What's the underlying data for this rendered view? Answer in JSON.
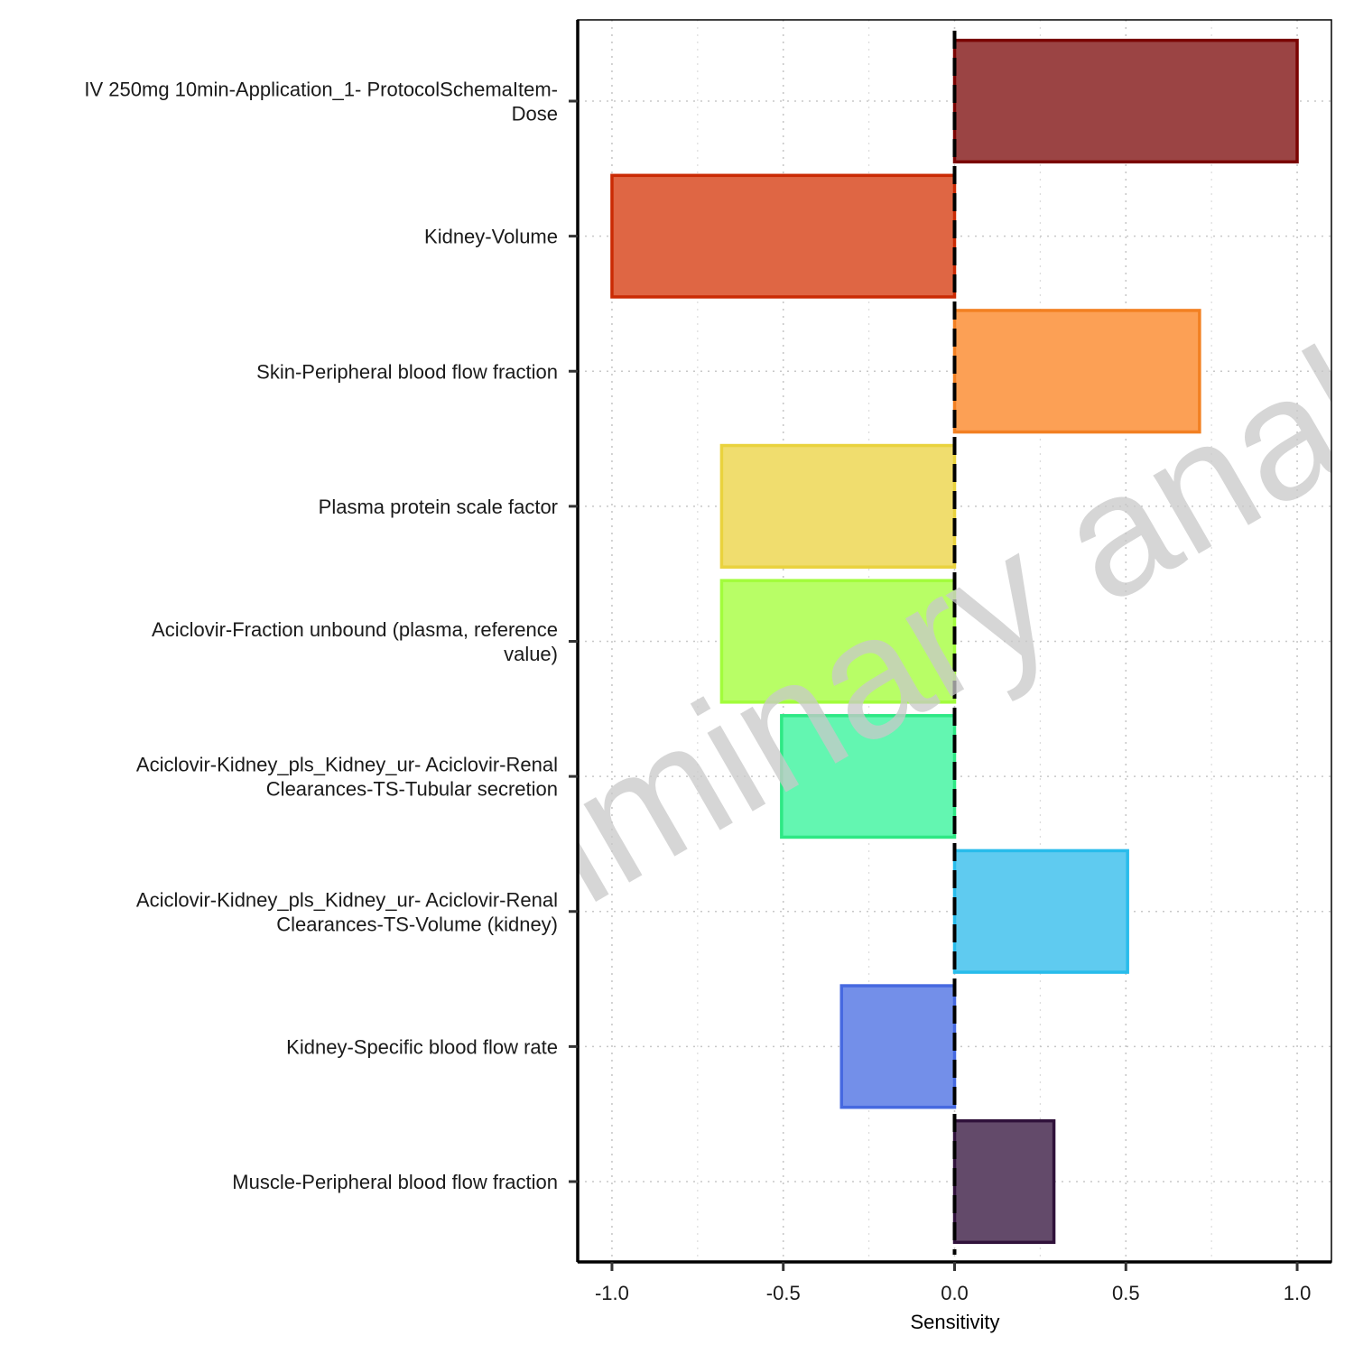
{
  "chart_data": {
    "type": "bar",
    "orientation": "horizontal",
    "xlabel": "Sensitivity",
    "xlim": [
      -1.1,
      1.1
    ],
    "x_ticks": [
      "-1.0",
      "-0.5",
      "0.0",
      "0.5",
      "1.0"
    ],
    "x_tick_values": [
      -1.0,
      -0.5,
      0.0,
      0.5,
      1.0
    ],
    "grid": "dotted",
    "reference_line": 0.0,
    "watermark": "Preliminary analysis",
    "categories": [
      [
        "IV 250mg 10min-Application_1- ProtocolSchemaItem-",
        "Dose"
      ],
      [
        "Kidney-Volume"
      ],
      [
        "Skin-Peripheral blood flow fraction"
      ],
      [
        "Plasma protein scale factor"
      ],
      [
        "Aciclovir-Fraction unbound (plasma, reference",
        "value)"
      ],
      [
        "Aciclovir-Kidney_pls_Kidney_ur- Aciclovir-Renal",
        "Clearances-TS-Tubular secretion"
      ],
      [
        "Aciclovir-Kidney_pls_Kidney_ur- Aciclovir-Renal",
        "Clearances-TS-Volume (kidney)"
      ],
      [
        "Kidney-Specific blood flow rate"
      ],
      [
        "Muscle-Peripheral blood flow fraction"
      ]
    ],
    "values": [
      1.0,
      -1.0,
      0.715,
      -0.68,
      -0.68,
      -0.505,
      0.505,
      -0.33,
      0.29
    ],
    "fill_colors": [
      "#9b4444",
      "#df6644",
      "#fca055",
      "#f0dd6e",
      "#b8fe66",
      "#63f6b1",
      "#5fcbf0",
      "#738fe9",
      "#634a6a"
    ],
    "edge_colors": [
      "#7a0403",
      "#ca2a04",
      "#f28022",
      "#e9d23e",
      "#a2fc3c",
      "#2ee884",
      "#28bceb",
      "#4669e0",
      "#30123b"
    ]
  }
}
